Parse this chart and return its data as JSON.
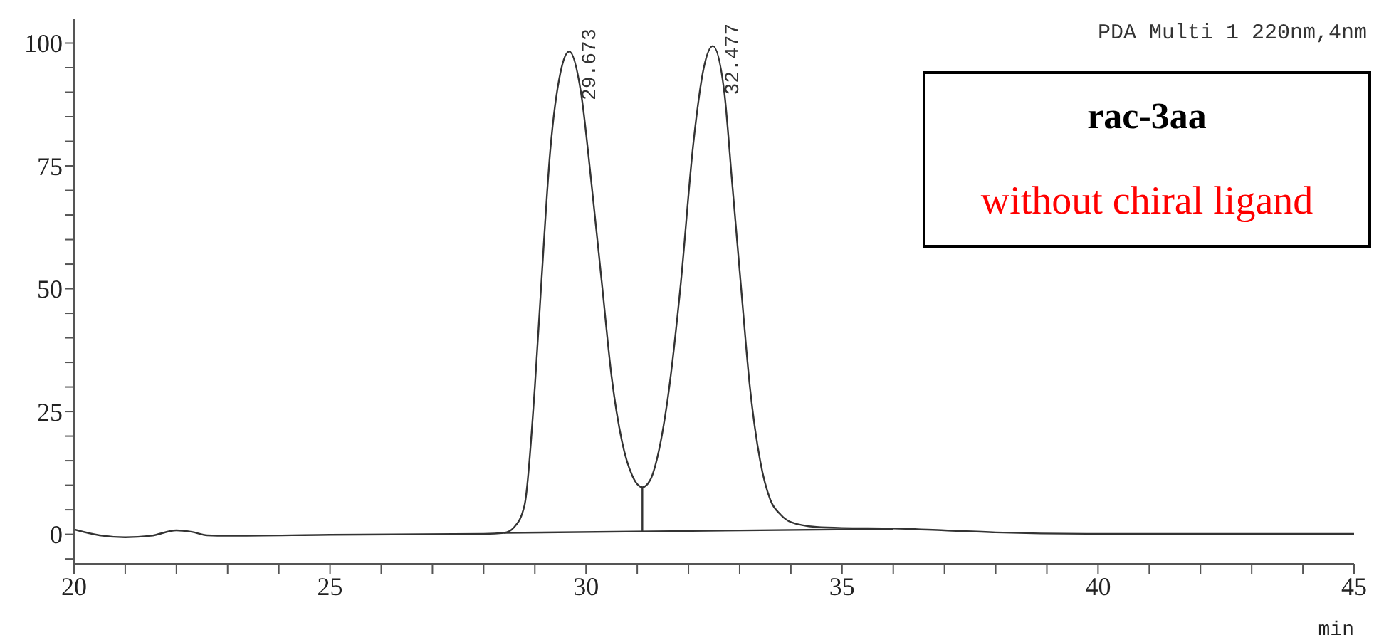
{
  "chart_data": {
    "type": "line",
    "xlabel": "min",
    "xlim": [
      20,
      45
    ],
    "ylim": [
      -6,
      105
    ],
    "xticks": [
      20,
      {
        "value": 21,
        "label": null
      },
      {
        "value": 22,
        "label": null
      },
      {
        "value": 23,
        "label": null
      },
      {
        "value": 24,
        "label": null
      },
      25,
      {
        "value": 26,
        "label": null
      },
      {
        "value": 27,
        "label": null
      },
      {
        "value": 28,
        "label": null
      },
      {
        "value": 29,
        "label": null
      },
      30,
      {
        "value": 31,
        "label": null
      },
      {
        "value": 32,
        "label": null
      },
      {
        "value": 33,
        "label": null
      },
      {
        "value": 34,
        "label": null
      },
      35,
      {
        "value": 36,
        "label": null
      },
      {
        "value": 37,
        "label": null
      },
      {
        "value": 38,
        "label": null
      },
      {
        "value": 39,
        "label": null
      },
      40,
      {
        "value": 41,
        "label": null
      },
      {
        "value": 42,
        "label": null
      },
      {
        "value": 43,
        "label": null
      },
      {
        "value": 44,
        "label": null
      },
      45
    ],
    "yticks": [
      {
        "value": -5,
        "label": null
      },
      0,
      {
        "value": 5,
        "label": null
      },
      {
        "value": 10,
        "label": null
      },
      {
        "value": 15,
        "label": null
      },
      {
        "value": 20,
        "label": null
      },
      25,
      {
        "value": 30,
        "label": null
      },
      {
        "value": 35,
        "label": null
      },
      {
        "value": 40,
        "label": null
      },
      {
        "value": 45,
        "label": null
      },
      50,
      {
        "value": 55,
        "label": null
      },
      {
        "value": 60,
        "label": null
      },
      {
        "value": 65,
        "label": null
      },
      {
        "value": 70,
        "label": null
      },
      75,
      {
        "value": 80,
        "label": null
      },
      {
        "value": 85,
        "label": null
      },
      {
        "value": 90,
        "label": null
      },
      {
        "value": 95,
        "label": null
      },
      100
    ],
    "marker": "none",
    "line_style": "solid",
    "series": [
      {
        "color": "#333333",
        "x": [
          20,
          20.5,
          21,
          21.5,
          22,
          22.3,
          22.6,
          23,
          25,
          28,
          28.4,
          28.6,
          28.8,
          29.0,
          29.12,
          29.3,
          29.5,
          29.673,
          29.9,
          30.1,
          30.32,
          30.5,
          30.7,
          30.9,
          31.1,
          31.25,
          31.4,
          31.6,
          31.84,
          32.1,
          32.3,
          32.477,
          32.7,
          32.85,
          33.03,
          33.2,
          33.4,
          33.6,
          33.8,
          34.0,
          34.5,
          35,
          36,
          37,
          38,
          40,
          45
        ],
        "values": [
          1.0,
          -0.2,
          -0.6,
          -0.3,
          0.8,
          0.5,
          -0.2,
          -0.3,
          -0.1,
          0.1,
          0.3,
          1.5,
          6,
          30,
          50,
          78,
          94,
          98.3,
          90,
          72,
          50,
          32,
          19,
          12,
          9.6,
          11,
          16,
          28,
          50,
          80,
          95,
          99.4,
          90,
          72,
          50,
          30,
          15,
          7,
          4,
          2.5,
          1.5,
          1.3,
          1.2,
          0.8,
          0.4,
          0.1,
          0.1
        ]
      },
      {
        "color": "#333333",
        "x": [
          28.4,
          36
        ],
        "values": [
          0.3,
          1.1
        ]
      },
      {
        "color": "#333333",
        "x": [
          31.1,
          31.1
        ],
        "values": [
          0.6,
          9.6
        ]
      }
    ],
    "annotations": [
      {
        "text": "29.673",
        "x": 29.673,
        "y": 98.3
      },
      {
        "text": "32.477",
        "x": 32.477,
        "y": 99.4
      },
      "PDA Multi 1 220nm,4nm",
      "rac-3aa",
      "without chiral ligand"
    ]
  }
}
